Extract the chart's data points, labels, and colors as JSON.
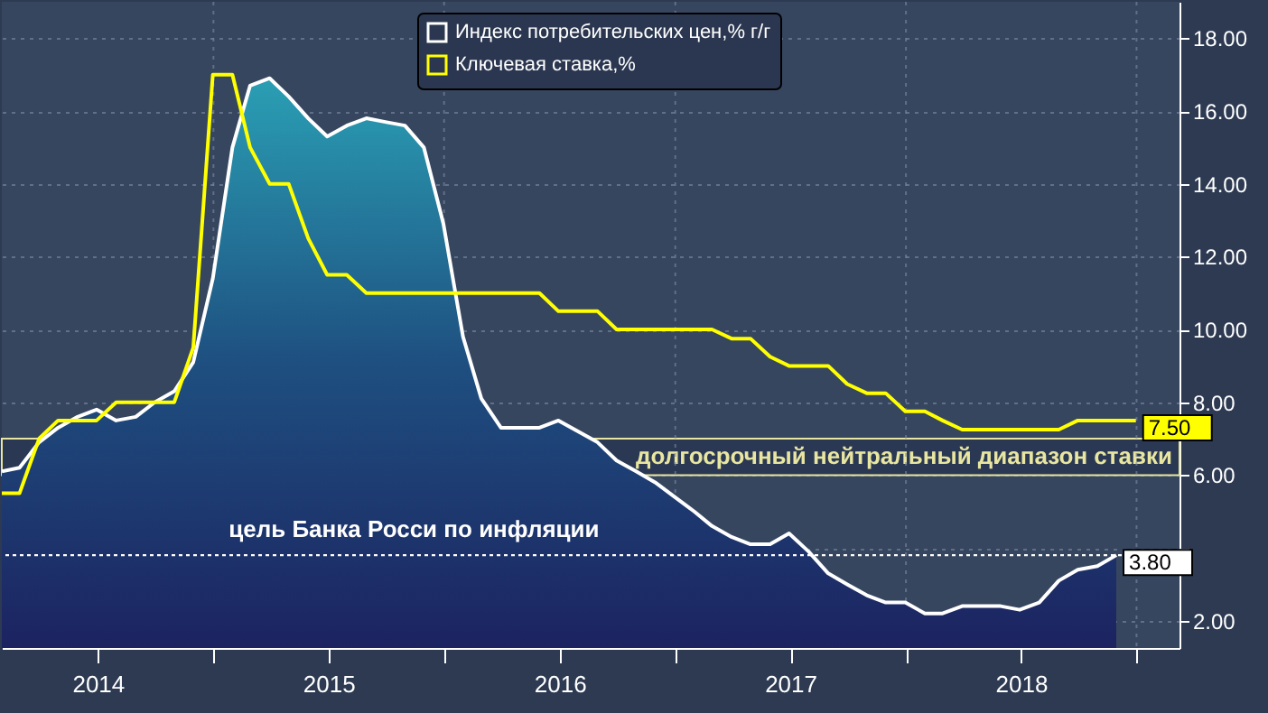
{
  "chart_data": {
    "type": "line",
    "legend": "top",
    "grid": true,
    "xlim": [
      "2014-01-31",
      "2019-03-10"
    ],
    "xticks": [
      {
        "value": "2014-07-02",
        "label": "2014"
      },
      {
        "value": "2015-01-01",
        "label": null
      },
      {
        "value": "2015-07-02",
        "label": "2015"
      },
      {
        "value": "2016-01-01",
        "label": null
      },
      {
        "value": "2016-07-02",
        "label": "2016"
      },
      {
        "value": "2017-01-01",
        "label": null
      },
      {
        "value": "2017-07-02",
        "label": "2017"
      },
      {
        "value": "2018-01-01",
        "label": null
      },
      {
        "value": "2018-07-02",
        "label": "2018"
      },
      {
        "value": "2019-01-01",
        "label": null
      }
    ],
    "ylim": [
      1.25,
      19
    ],
    "yticks": [
      {
        "value": 2,
        "label": "2.00"
      },
      {
        "value": 4,
        "label": null
      },
      {
        "value": 6,
        "label": "6.00"
      },
      {
        "value": 8,
        "label": "8.00"
      },
      {
        "value": 10,
        "label": "10.00"
      },
      {
        "value": 12,
        "label": "12.00"
      },
      {
        "value": 14,
        "label": "14.00"
      },
      {
        "value": 16,
        "label": "16.00"
      },
      {
        "value": 18,
        "label": "18.00"
      }
    ],
    "x": [
      "2014-01-31",
      "2014-02-28",
      "2014-03-31",
      "2014-04-30",
      "2014-05-31",
      "2014-06-30",
      "2014-07-31",
      "2014-08-31",
      "2014-09-30",
      "2014-10-31",
      "2014-11-30",
      "2014-12-31",
      "2015-01-31",
      "2015-02-28",
      "2015-03-31",
      "2015-04-30",
      "2015-05-31",
      "2015-06-30",
      "2015-07-31",
      "2015-08-31",
      "2015-09-30",
      "2015-10-31",
      "2015-11-30",
      "2015-12-31",
      "2016-01-31",
      "2016-02-29",
      "2016-03-31",
      "2016-04-30",
      "2016-05-31",
      "2016-06-30",
      "2016-07-31",
      "2016-08-31",
      "2016-09-30",
      "2016-10-31",
      "2016-11-30",
      "2016-12-31",
      "2017-01-31",
      "2017-02-28",
      "2017-03-31",
      "2017-04-30",
      "2017-05-31",
      "2017-06-30",
      "2017-07-31",
      "2017-08-31",
      "2017-09-30",
      "2017-10-31",
      "2017-11-30",
      "2017-12-31",
      "2018-01-31",
      "2018-02-28",
      "2018-03-31",
      "2018-04-30",
      "2018-05-31",
      "2018-06-30",
      "2018-07-31",
      "2018-08-31",
      "2018-09-30",
      "2018-10-31",
      "2018-11-30",
      "2018-12-31"
    ],
    "series": [
      {
        "name": "Индекс потребительских цен,% г/г",
        "type": "area",
        "color": "#ffffff",
        "values": [
          6.1,
          6.2,
          6.9,
          7.3,
          7.6,
          7.8,
          7.5,
          7.6,
          8.0,
          8.3,
          9.1,
          11.4,
          15.0,
          16.7,
          16.9,
          16.4,
          15.8,
          15.3,
          15.6,
          15.8,
          15.7,
          15.6,
          15.0,
          12.9,
          9.8,
          8.1,
          7.3,
          7.3,
          7.3,
          7.5,
          7.2,
          6.9,
          6.4,
          6.1,
          5.8,
          5.4,
          5.0,
          4.6,
          4.3,
          4.1,
          4.1,
          4.4,
          3.9,
          3.3,
          3.0,
          2.7,
          2.5,
          2.5,
          2.2,
          2.2,
          2.4,
          2.4,
          2.4,
          2.3,
          2.5,
          3.1,
          3.4,
          3.5,
          3.8,
          null
        ],
        "value_labels": [
          null,
          null,
          null,
          null,
          null,
          null,
          null,
          null,
          null,
          null,
          null,
          null,
          null,
          null,
          null,
          null,
          null,
          null,
          null,
          null,
          null,
          null,
          null,
          null,
          null,
          null,
          null,
          null,
          null,
          null,
          null,
          null,
          null,
          null,
          null,
          null,
          null,
          null,
          null,
          null,
          null,
          null,
          null,
          null,
          null,
          null,
          null,
          null,
          null,
          null,
          null,
          null,
          null,
          null,
          null,
          null,
          null,
          null,
          "3.80",
          null
        ]
      },
      {
        "name": "Ключевая ставка,%",
        "color": "#ffff00",
        "values": [
          5.5,
          5.5,
          7.0,
          7.5,
          7.5,
          7.5,
          8.0,
          8.0,
          8.0,
          8.0,
          9.5,
          17.0,
          17.0,
          15.0,
          14.0,
          14.0,
          12.5,
          11.5,
          11.5,
          11.0,
          11.0,
          11.0,
          11.0,
          11.0,
          11.0,
          11.0,
          11.0,
          11.0,
          11.0,
          10.5,
          10.5,
          10.5,
          10.0,
          10.0,
          10.0,
          10.0,
          10.0,
          10.0,
          9.75,
          9.75,
          9.25,
          9.0,
          9.0,
          9.0,
          8.5,
          8.25,
          8.25,
          7.75,
          7.75,
          7.5,
          7.25,
          7.25,
          7.25,
          7.25,
          7.25,
          7.25,
          7.5,
          7.5,
          7.5,
          7.5
        ],
        "value_labels": [
          null,
          null,
          null,
          null,
          null,
          null,
          null,
          null,
          null,
          null,
          null,
          null,
          null,
          null,
          null,
          null,
          null,
          null,
          null,
          null,
          null,
          null,
          null,
          null,
          null,
          null,
          null,
          null,
          null,
          null,
          null,
          null,
          null,
          null,
          null,
          null,
          null,
          null,
          null,
          null,
          null,
          null,
          null,
          null,
          null,
          null,
          null,
          null,
          null,
          null,
          null,
          null,
          null,
          null,
          null,
          null,
          null,
          null,
          null,
          "7.50"
        ]
      }
    ],
    "ref_lines": [
      {
        "axis": "y",
        "value": 3.8,
        "label": "цель Банка Росси по инфляции",
        "color": "#ffffff",
        "line_style": "dotted"
      }
    ],
    "bands": [
      {
        "axis": "y",
        "from": 6,
        "to": 7,
        "label": "долгосрочный нейтральный диапазон ставки",
        "color": "#e8e6a0"
      }
    ]
  }
}
